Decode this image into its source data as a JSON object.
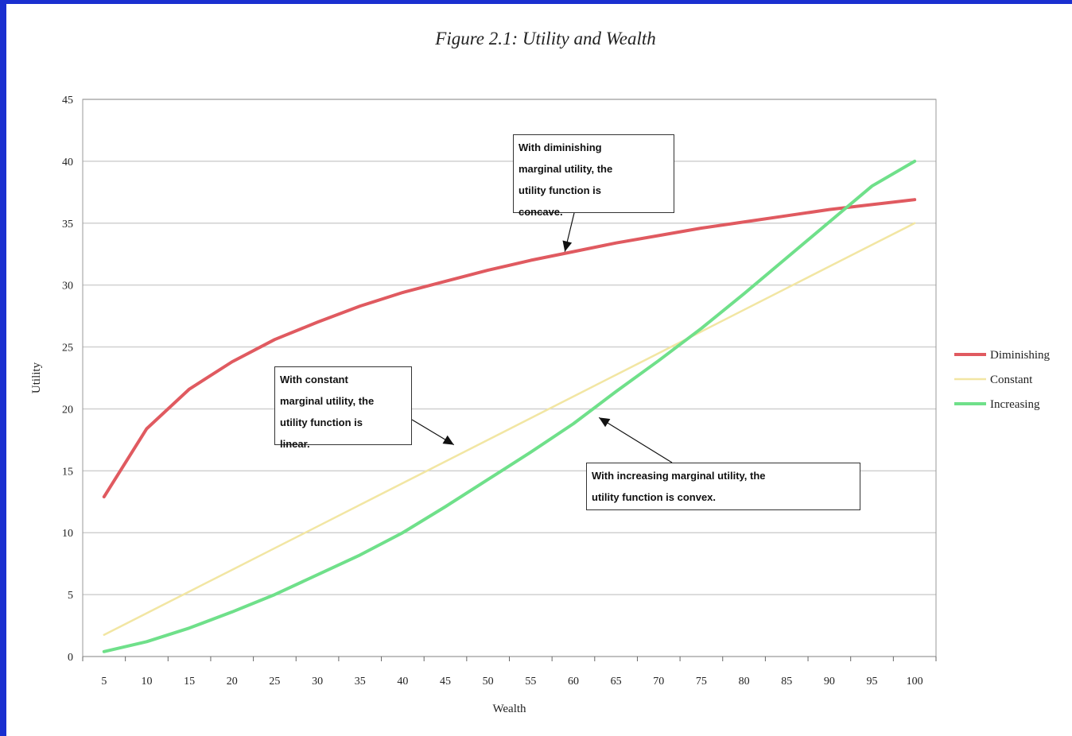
{
  "colors": {
    "background": "#1a2fd0",
    "grid": "#d0d0d0",
    "diminishing": "#e05a60",
    "constant": "#f2e6a3",
    "increasing": "#6fe08a"
  },
  "chart_data": {
    "type": "line",
    "title": "Figure 2.1: Utility and Wealth",
    "xlabel": "Wealth",
    "ylabel": "Utility",
    "ylim": [
      0,
      45
    ],
    "y_ticks": [
      0,
      5,
      10,
      15,
      20,
      25,
      30,
      35,
      40,
      45
    ],
    "grid": true,
    "legend_position": "right",
    "categories": [
      5,
      10,
      15,
      20,
      25,
      30,
      35,
      40,
      45,
      50,
      55,
      60,
      65,
      70,
      75,
      80,
      85,
      90,
      95,
      100
    ],
    "series": [
      {
        "name": "Diminishing",
        "color": "#e05a60",
        "values": [
          12.9,
          18.4,
          21.6,
          23.8,
          25.6,
          27.0,
          28.3,
          29.4,
          30.3,
          31.2,
          32.0,
          32.7,
          33.4,
          34.0,
          34.6,
          35.1,
          35.6,
          36.1,
          36.5,
          36.9
        ]
      },
      {
        "name": "Constant",
        "color": "#f2e6a3",
        "values": [
          1.75,
          3.5,
          5.25,
          7.0,
          8.75,
          10.5,
          12.25,
          14.0,
          15.75,
          17.5,
          19.25,
          21.0,
          22.75,
          24.5,
          26.25,
          28.0,
          29.75,
          31.5,
          33.25,
          35.0
        ]
      },
      {
        "name": "Increasing",
        "color": "#6fe08a",
        "values": [
          0.4,
          1.2,
          2.3,
          3.6,
          5.0,
          6.6,
          8.2,
          10.0,
          12.1,
          14.3,
          16.5,
          18.8,
          21.4,
          23.9,
          26.5,
          29.3,
          32.2,
          35.1,
          38.0,
          40.0
        ]
      }
    ],
    "annotations": [
      {
        "id": "concave",
        "lines": [
          "With diminishing",
          "marginal utility, the",
          "utility function is",
          "concave."
        ],
        "arrow_target": {
          "x": 59,
          "y": 32.7
        }
      },
      {
        "id": "linear",
        "lines": [
          "With constant",
          "marginal utility, the",
          "utility function is",
          "linear."
        ],
        "arrow_target": {
          "x": 46,
          "y": 17.1
        }
      },
      {
        "id": "convex",
        "lines": [
          "With increasing marginal utility, the",
          "utility function is convex."
        ],
        "arrow_target": {
          "x": 63,
          "y": 19.3
        }
      }
    ]
  }
}
